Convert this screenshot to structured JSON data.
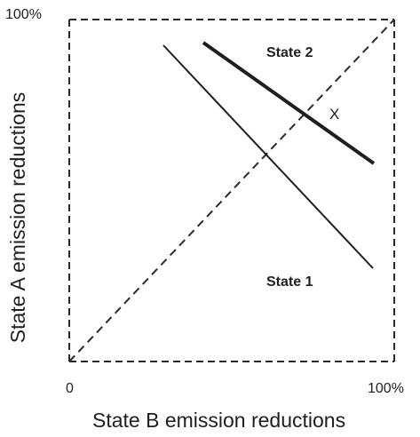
{
  "diagram": {
    "ticks": {
      "top_left": "100%",
      "bottom_left": "0",
      "bottom_right": "100%"
    },
    "x_axis_label": "State B emission reductions",
    "y_axis_label": "State A emission reductions",
    "labels": {
      "state_1": "State 1",
      "state_2": "State 2",
      "point_x": "X"
    },
    "lines": {
      "frame_style": "dashed",
      "diagonal_style": "dashed",
      "state_1_style": "solid-thin",
      "state_2_style": "solid-thick"
    }
  }
}
